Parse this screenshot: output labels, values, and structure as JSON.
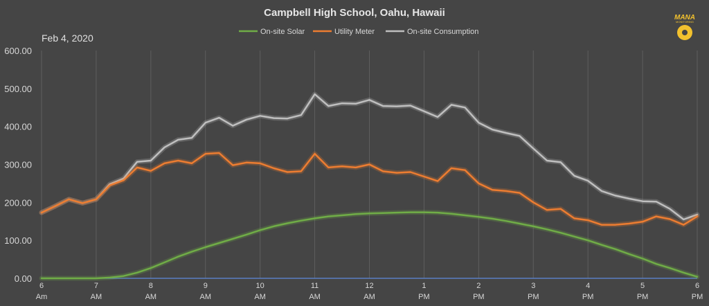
{
  "chart_data": {
    "type": "line",
    "title": "Campbell High School, Oahu, Hawaii",
    "subtitle": "Feb 4, 2020",
    "xlabel": "",
    "ylabel": "",
    "ylim": [
      0,
      600
    ],
    "y_ticks": [
      "0.00",
      "100.00",
      "200.00",
      "300.00",
      "400.00",
      "500.00",
      "600.00"
    ],
    "x_ticks": [
      {
        "hour": "6",
        "period": "Am"
      },
      {
        "hour": "7",
        "period": "AM"
      },
      {
        "hour": "8",
        "period": "AM"
      },
      {
        "hour": "9",
        "period": "AM"
      },
      {
        "hour": "10",
        "period": "AM"
      },
      {
        "hour": "11",
        "period": "AM"
      },
      {
        "hour": "12",
        "period": "AM"
      },
      {
        "hour": "1",
        "period": "PM"
      },
      {
        "hour": "2",
        "period": "PM"
      },
      {
        "hour": "3",
        "period": "PM"
      },
      {
        "hour": "4",
        "period": "PM"
      },
      {
        "hour": "5",
        "period": "PM"
      },
      {
        "hour": "6",
        "period": "PM"
      }
    ],
    "x_range": [
      6,
      18
    ],
    "grid": "vertical",
    "legend_position": "top",
    "series": [
      {
        "name": "On-site Solar",
        "color": "#70ad47",
        "x": [
          6.0,
          6.25,
          6.5,
          6.75,
          7.0,
          7.25,
          7.5,
          7.75,
          8.0,
          8.25,
          8.5,
          8.75,
          9.0,
          9.25,
          9.5,
          9.75,
          10.0,
          10.25,
          10.5,
          10.75,
          11.0,
          11.25,
          11.5,
          11.75,
          12.0,
          12.25,
          12.5,
          12.75,
          13.0,
          13.25,
          13.5,
          13.75,
          14.0,
          14.25,
          14.5,
          14.75,
          15.0,
          15.25,
          15.5,
          15.75,
          16.0,
          16.25,
          16.5,
          16.75,
          17.0,
          17.25,
          17.5,
          17.75,
          18.0
        ],
        "values": [
          0,
          0,
          0,
          0,
          0,
          2,
          6,
          15,
          27,
          42,
          57,
          70,
          82,
          93,
          104,
          115,
          127,
          137,
          145,
          152,
          158,
          163,
          166,
          169,
          171,
          172,
          173,
          174,
          174,
          173,
          170,
          166,
          162,
          157,
          151,
          144,
          137,
          129,
          120,
          110,
          100,
          88,
          77,
          64,
          52,
          38,
          27,
          15,
          4
        ]
      },
      {
        "name": "Utility Meter",
        "color": "#ed7d31",
        "x": [
          6.0,
          6.25,
          6.5,
          6.75,
          7.0,
          7.25,
          7.5,
          7.75,
          8.0,
          8.25,
          8.5,
          8.75,
          9.0,
          9.25,
          9.5,
          9.75,
          10.0,
          10.25,
          10.5,
          10.75,
          11.0,
          11.25,
          11.5,
          11.75,
          12.0,
          12.25,
          12.5,
          12.75,
          13.0,
          13.25,
          13.5,
          13.75,
          14.0,
          14.25,
          14.5,
          14.75,
          15.0,
          15.25,
          15.5,
          15.75,
          16.0,
          16.25,
          16.5,
          16.75,
          17.0,
          17.25,
          17.5,
          17.75,
          18.0
        ],
        "values": [
          173,
          190,
          208,
          198,
          208,
          245,
          258,
          292,
          283,
          303,
          310,
          303,
          328,
          330,
          298,
          305,
          303,
          290,
          280,
          282,
          328,
          292,
          295,
          292,
          300,
          282,
          278,
          280,
          268,
          256,
          290,
          285,
          250,
          233,
          230,
          225,
          200,
          180,
          183,
          158,
          153,
          141,
          141,
          144,
          149,
          163,
          156,
          141,
          163
        ]
      },
      {
        "name": "On-site Consumption",
        "color": "#bfbfbf",
        "x": [
          6.0,
          6.25,
          6.5,
          6.75,
          7.0,
          7.25,
          7.5,
          7.75,
          8.0,
          8.25,
          8.5,
          8.75,
          9.0,
          9.25,
          9.5,
          9.75,
          10.0,
          10.25,
          10.5,
          10.75,
          11.0,
          11.25,
          11.5,
          11.75,
          12.0,
          12.25,
          12.5,
          12.75,
          13.0,
          13.25,
          13.5,
          13.75,
          14.0,
          14.25,
          14.5,
          14.75,
          15.0,
          15.25,
          15.5,
          15.75,
          16.0,
          16.25,
          16.5,
          16.75,
          17.0,
          17.25,
          17.5,
          17.75,
          18.0
        ],
        "values": [
          173,
          190,
          208,
          198,
          208,
          248,
          263,
          307,
          310,
          345,
          365,
          370,
          410,
          423,
          402,
          418,
          428,
          422,
          421,
          430,
          485,
          454,
          461,
          460,
          470,
          454,
          453,
          455,
          440,
          425,
          457,
          450,
          410,
          392,
          383,
          375,
          342,
          310,
          306,
          270,
          257,
          230,
          218,
          210,
          203,
          202,
          183,
          155,
          168
        ]
      }
    ]
  },
  "logo": {
    "text": "MANA",
    "subtext": "MONITORING",
    "color": "#f2c12e"
  }
}
